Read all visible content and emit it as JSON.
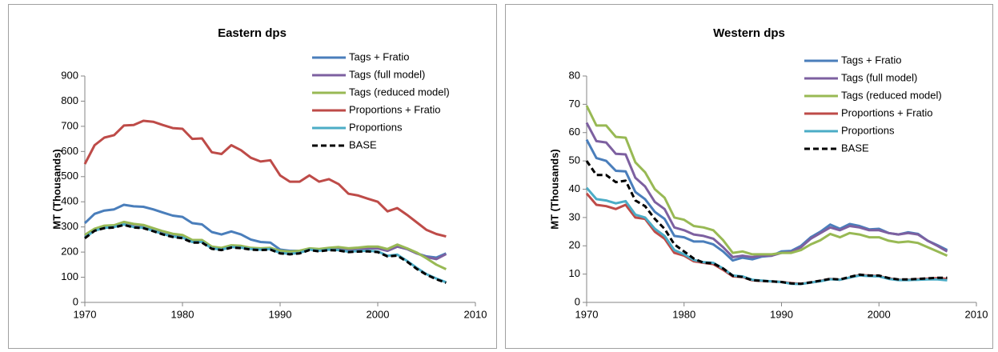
{
  "chart_data": [
    {
      "type": "line",
      "title": "Eastern dps",
      "y_label": "MT (Thousands)",
      "x": [
        1970,
        1971,
        1972,
        1973,
        1974,
        1975,
        1976,
        1977,
        1978,
        1979,
        1980,
        1981,
        1982,
        1983,
        1984,
        1985,
        1986,
        1987,
        1988,
        1989,
        1990,
        1991,
        1992,
        1993,
        1994,
        1995,
        1996,
        1997,
        1998,
        1999,
        2000,
        2001,
        2002,
        2003,
        2004,
        2005,
        2006,
        2007
      ],
      "xlim": [
        1970,
        2010
      ],
      "xticks": [
        1970,
        1980,
        1990,
        2000,
        2010
      ],
      "ylim": [
        0,
        900
      ],
      "yticks": [
        0,
        100,
        200,
        300,
        400,
        500,
        600,
        700,
        800,
        900
      ],
      "series": [
        {
          "name": "Tags + Fratio",
          "color": "#4a7ebb",
          "values": [
            315,
            352,
            365,
            370,
            388,
            382,
            380,
            370,
            357,
            345,
            340,
            315,
            310,
            280,
            270,
            282,
            270,
            250,
            240,
            238,
            210,
            205,
            205,
            213,
            210,
            213,
            215,
            210,
            212,
            215,
            215,
            205,
            222,
            212,
            195,
            183,
            178,
            195
          ]
        },
        {
          "name": "Tags (full model)",
          "color": "#7d60a0",
          "values": [
            265,
            292,
            302,
            305,
            318,
            310,
            305,
            293,
            280,
            270,
            265,
            245,
            245,
            220,
            215,
            225,
            222,
            215,
            212,
            215,
            200,
            198,
            200,
            212,
            208,
            212,
            212,
            208,
            212,
            215,
            215,
            205,
            222,
            212,
            195,
            180,
            172,
            192
          ]
        },
        {
          "name": "Tags (reduced model)",
          "color": "#98b954",
          "values": [
            268,
            293,
            305,
            307,
            320,
            312,
            308,
            295,
            283,
            273,
            268,
            248,
            248,
            222,
            217,
            227,
            225,
            217,
            215,
            217,
            205,
            202,
            205,
            215,
            212,
            217,
            220,
            215,
            218,
            222,
            222,
            212,
            230,
            215,
            198,
            175,
            150,
            132
          ]
        },
        {
          "name": "Proportions + Fratio",
          "color": "#be4b48",
          "values": [
            550,
            625,
            655,
            665,
            703,
            705,
            722,
            718,
            705,
            693,
            690,
            650,
            652,
            597,
            590,
            625,
            605,
            575,
            560,
            565,
            505,
            480,
            480,
            505,
            480,
            490,
            470,
            432,
            425,
            412,
            400,
            362,
            375,
            348,
            318,
            288,
            272,
            262
          ]
        },
        {
          "name": "Proportions",
          "color": "#4bacc6",
          "values": [
            258,
            285,
            296,
            300,
            310,
            300,
            297,
            285,
            272,
            262,
            258,
            240,
            240,
            215,
            210,
            220,
            218,
            212,
            210,
            212,
            197,
            193,
            197,
            210,
            205,
            210,
            208,
            202,
            204,
            205,
            203,
            185,
            190,
            165,
            137,
            112,
            95,
            80
          ]
        },
        {
          "name": "BASE",
          "color": "#000000",
          "dashed": true,
          "values": [
            255,
            285,
            295,
            298,
            308,
            298,
            295,
            283,
            270,
            260,
            255,
            238,
            238,
            213,
            208,
            218,
            216,
            210,
            208,
            210,
            195,
            191,
            195,
            208,
            203,
            208,
            206,
            200,
            202,
            203,
            200,
            183,
            186,
            162,
            133,
            110,
            92,
            78
          ]
        }
      ]
    },
    {
      "type": "line",
      "title": "Western dps",
      "y_label": "MT (Thousands)",
      "x": [
        1970,
        1971,
        1972,
        1973,
        1974,
        1975,
        1976,
        1977,
        1978,
        1979,
        1980,
        1981,
        1982,
        1983,
        1984,
        1985,
        1986,
        1987,
        1988,
        1989,
        1990,
        1991,
        1992,
        1993,
        1994,
        1995,
        1996,
        1997,
        1998,
        1999,
        2000,
        2001,
        2002,
        2003,
        2004,
        2005,
        2006,
        2007
      ],
      "xlim": [
        1970,
        2010
      ],
      "xticks": [
        1970,
        1980,
        1990,
        2000,
        2010
      ],
      "ylim": [
        0,
        80
      ],
      "yticks": [
        0,
        10,
        20,
        30,
        40,
        50,
        60,
        70,
        80
      ],
      "series": [
        {
          "name": "Tags + Fratio",
          "color": "#4a7ebb",
          "values": [
            57.5,
            51,
            50,
            46.5,
            46.3,
            39,
            36.5,
            32,
            29.5,
            23.5,
            23,
            21.5,
            21.5,
            20.5,
            18,
            14.8,
            15.8,
            15.2,
            16.2,
            16.5,
            18,
            18.2,
            20,
            23,
            25,
            27.5,
            26,
            27.7,
            27,
            25.8,
            26,
            24.5,
            24,
            24.8,
            24.2,
            21.8,
            20.2,
            18.5
          ]
        },
        {
          "name": "Tags (full model)",
          "color": "#7d60a0",
          "values": [
            63.5,
            57,
            56.5,
            52.5,
            52.3,
            44,
            41,
            35.5,
            33,
            26.5,
            25.5,
            24,
            23.5,
            22.5,
            19.5,
            16,
            16.5,
            16,
            16.5,
            16.5,
            17.5,
            17.8,
            19.5,
            22.5,
            24.5,
            26.5,
            25.5,
            27,
            26.5,
            25.5,
            25.5,
            24.5,
            24,
            24.5,
            24,
            21.8,
            20,
            18
          ]
        },
        {
          "name": "Tags (reduced model)",
          "color": "#98b954",
          "values": [
            69.5,
            62.5,
            62.5,
            58.5,
            58.2,
            49.5,
            46,
            40,
            37,
            30,
            29.2,
            27,
            26.5,
            25.5,
            22,
            17.5,
            18,
            17,
            17,
            17,
            17.5,
            17.5,
            18.5,
            20.5,
            22,
            24.2,
            23,
            24.5,
            24,
            23,
            23,
            21.8,
            21.2,
            21.5,
            21,
            19.5,
            18,
            16.5
          ]
        },
        {
          "name": "Proportions + Fratio",
          "color": "#be4b48",
          "values": [
            38.5,
            34.5,
            34,
            33,
            34.5,
            30,
            29.5,
            25,
            22.5,
            17.5,
            16.5,
            14.5,
            14,
            13.5,
            11.5,
            9.2,
            9,
            7.8,
            7.6,
            7.4,
            7.2,
            6.8,
            6.6,
            7,
            7.6,
            8.3,
            8,
            8.8,
            9.7,
            9.5,
            9.3,
            8.5,
            8,
            8,
            8.2,
            8.4,
            8.6,
            8.3
          ]
        },
        {
          "name": "Proportions",
          "color": "#4bacc6",
          "values": [
            40.5,
            36.5,
            36,
            35,
            35.8,
            31,
            30,
            26,
            23.5,
            18.5,
            17,
            15,
            14.2,
            14,
            12,
            9.5,
            9.2,
            8,
            7.7,
            7.4,
            7.2,
            6.6,
            6.5,
            7,
            7.5,
            8.2,
            8,
            8.8,
            9.5,
            9.3,
            9.2,
            8.3,
            7.9,
            7.9,
            8,
            8.1,
            8.1,
            7.8
          ]
        },
        {
          "name": "BASE",
          "color": "#000000",
          "dashed": true,
          "values": [
            50,
            45,
            45,
            42.5,
            43,
            36,
            34,
            29.5,
            26,
            20.5,
            18,
            15.5,
            14,
            13.8,
            12,
            9.4,
            9,
            7.8,
            7.6,
            7.4,
            7.2,
            6.7,
            6.6,
            7.1,
            7.7,
            8.3,
            8.1,
            9,
            9.8,
            9.5,
            9.5,
            8.6,
            8.1,
            8.1,
            8.3,
            8.5,
            8.7,
            8.7
          ]
        }
      ]
    }
  ]
}
